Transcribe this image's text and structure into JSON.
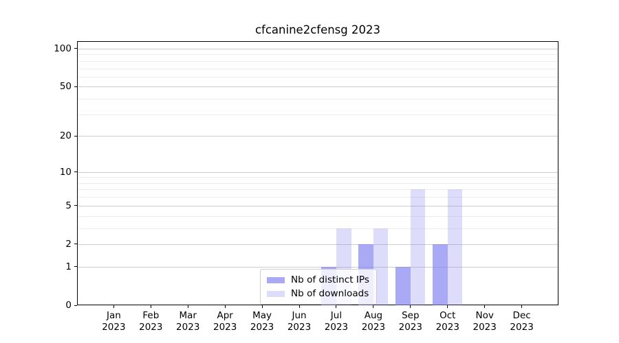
{
  "chart_data": {
    "type": "bar",
    "title": "cfcanine2cfensg 2023",
    "categories": [
      "Jan",
      "Feb",
      "Mar",
      "Apr",
      "May",
      "Jun",
      "Jul",
      "Aug",
      "Sep",
      "Oct",
      "Nov",
      "Dec"
    ],
    "x_tick_second_line": "2023",
    "series": [
      {
        "name": "Nb of distinct IPs",
        "color": "rgba(121,121,241,0.64)",
        "values": [
          0,
          0,
          0,
          0,
          0,
          0,
          1,
          2,
          1,
          2,
          0,
          0
        ]
      },
      {
        "name": "Nb of downloads",
        "color": "rgba(121,121,241,0.25)",
        "values": [
          0,
          0,
          0,
          0,
          0,
          0,
          3,
          3,
          7,
          7,
          0,
          0
        ]
      }
    ],
    "y_axis": {
      "scale": "log1p",
      "major_ticks": [
        0,
        1,
        2,
        5,
        10,
        20,
        50,
        100
      ],
      "minor_ticks": [
        3,
        4,
        6,
        7,
        8,
        9,
        30,
        40,
        60,
        70,
        80,
        90
      ],
      "ylim": [
        0,
        114.6
      ]
    },
    "xlabel": "",
    "ylabel": "",
    "grid": "on",
    "legend_position": "lower center",
    "colors": {
      "grid_major": "#cccccc",
      "grid_minor": "#ececec",
      "spine": "#000000",
      "text": "#000000",
      "legend_border": "#cccccc",
      "legend_bg": "rgba(255,255,255,0.8)"
    }
  }
}
